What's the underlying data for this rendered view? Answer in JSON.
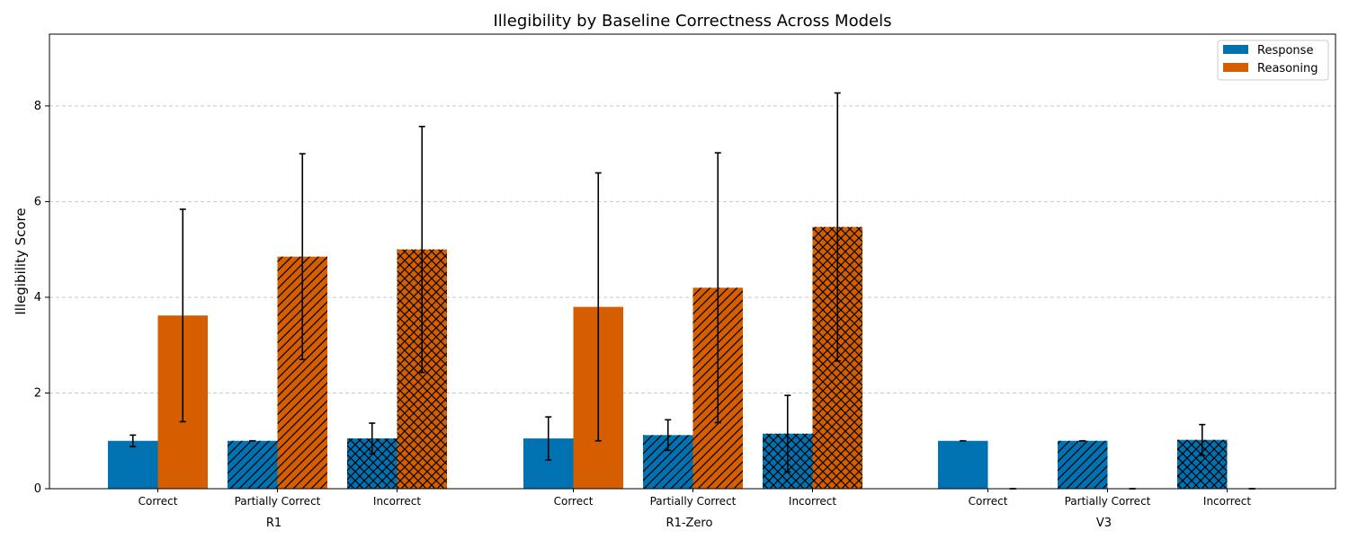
{
  "chart_data": {
    "type": "bar",
    "title": "Illegibility by Baseline Correctness Across Models",
    "xlabel": "",
    "ylabel": "Illegibility Score",
    "ylim": [
      0,
      9.5
    ],
    "yticks": [
      0,
      2,
      4,
      6,
      8
    ],
    "grid": "y-dashed",
    "legend_position": "top-right",
    "groups": [
      "R1",
      "R1-Zero",
      "V3"
    ],
    "categories": [
      "Correct",
      "Partially Correct",
      "Incorrect"
    ],
    "category_hatch": [
      "none",
      "diagonal",
      "crosshatch"
    ],
    "series": [
      {
        "name": "Response",
        "color": "#0072b2",
        "values": [
          [
            1.0,
            1.0,
            1.05
          ],
          [
            1.05,
            1.12,
            1.15
          ],
          [
            1.0,
            1.0,
            1.02
          ]
        ],
        "errors": [
          [
            0.12,
            0.0,
            0.32
          ],
          [
            0.45,
            0.32,
            0.8
          ],
          [
            0.0,
            0.0,
            0.32
          ]
        ]
      },
      {
        "name": "Reasoning",
        "color": "#d55e00",
        "values": [
          [
            3.62,
            4.85,
            5.0
          ],
          [
            3.8,
            4.2,
            5.47
          ],
          [
            0.0,
            0.0,
            0.0
          ]
        ],
        "errors": [
          [
            2.22,
            2.15,
            2.57
          ],
          [
            2.8,
            2.82,
            2.8
          ],
          [
            0.0,
            0.0,
            0.0
          ]
        ]
      }
    ]
  }
}
